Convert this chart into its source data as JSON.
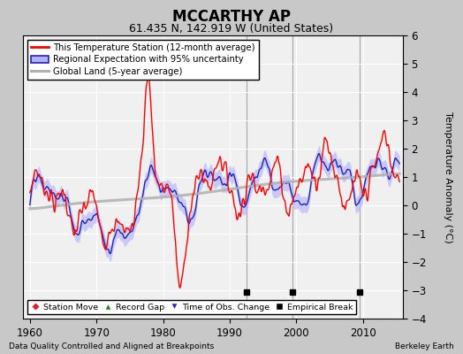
{
  "title": "MCCARTHY AP",
  "subtitle": "61.435 N, 142.919 W (United States)",
  "ylabel": "Temperature Anomaly (°C)",
  "xlabel_left": "Data Quality Controlled and Aligned at Breakpoints",
  "xlabel_right": "Berkeley Earth",
  "ylim": [
    -4,
    6
  ],
  "xlim": [
    1959,
    2016
  ],
  "xticks": [
    1960,
    1970,
    1980,
    1990,
    2000,
    2010
  ],
  "yticks": [
    -4,
    -3,
    -2,
    -1,
    0,
    1,
    2,
    3,
    4,
    5,
    6
  ],
  "plot_bg_color": "#f0f0f0",
  "fig_bg_color": "#c8c8c8",
  "grid_color": "#ffffff",
  "empirical_breaks": [
    1992.5,
    1999.5,
    2009.5
  ],
  "break_line_color": "#888888",
  "legend_line_red": "#ff0000",
  "legend_fill_blue": "#b0b0ff",
  "legend_line_blue": "#2222bb",
  "legend_line_gray": "#b0b0b0"
}
